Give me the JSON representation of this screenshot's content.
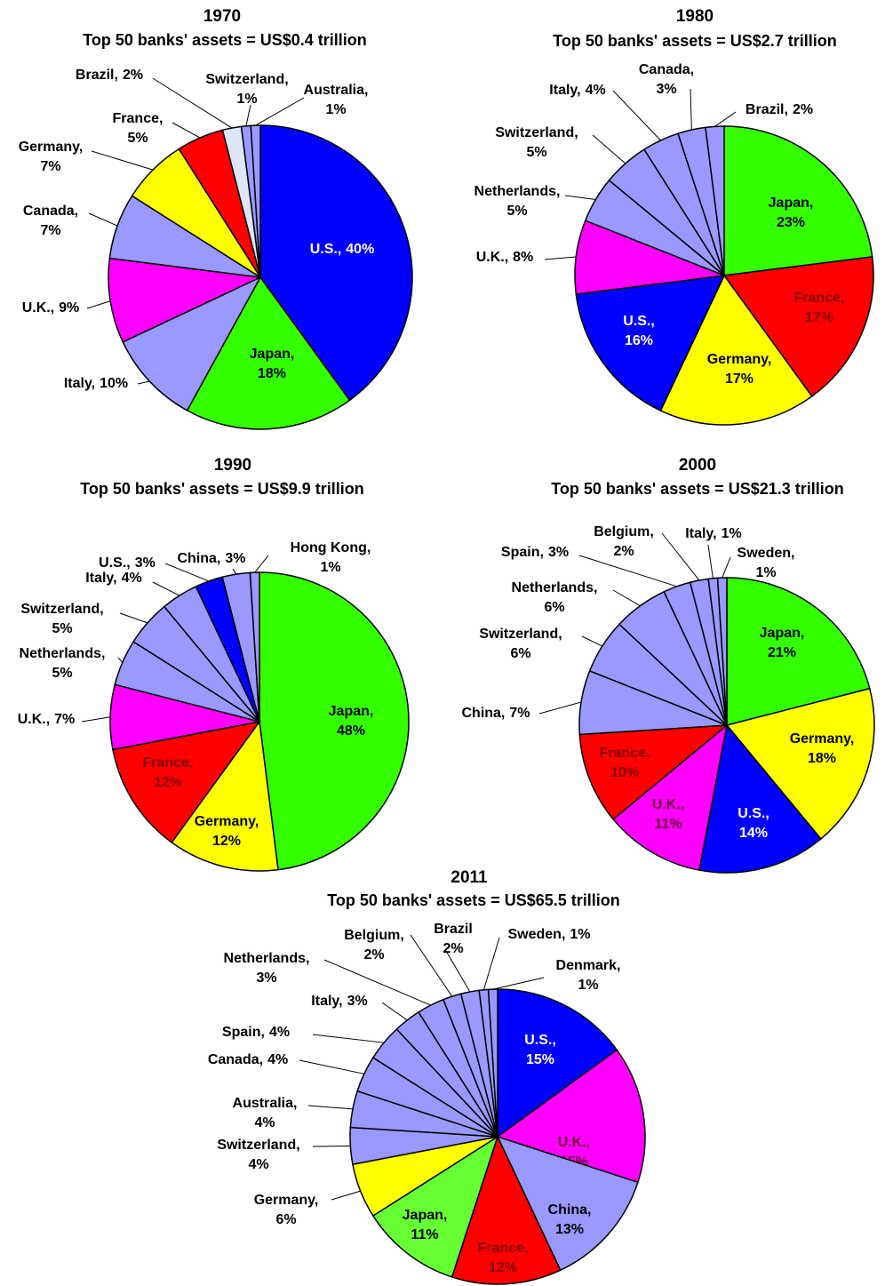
{
  "chart_data": [
    {
      "type": "pie",
      "title": "1970",
      "subtitle": "Top 50 banks' assets = US$0.4 trillion",
      "categories": [
        "U.S.,",
        "Japan,",
        "Italy,",
        "U.K.,",
        "Canada,",
        "Germany,",
        "France,",
        "Brazil,",
        "Switzerland,",
        "Australia,"
      ],
      "values": [
        40,
        18,
        10,
        9,
        7,
        7,
        5,
        2,
        1,
        1
      ],
      "value_labels": [
        "40%",
        "18%",
        "10%",
        "9%",
        "7%",
        "7%",
        "5%",
        "2%",
        "1%",
        "1%"
      ],
      "colors": [
        "#0000ff",
        "#33ff00",
        "#9999ff",
        "#ff00ff",
        "#9999ff",
        "#ffff00",
        "#ff0000",
        "#dde6f5",
        "#9999ff",
        "#9999ff"
      ]
    },
    {
      "type": "pie",
      "title": "1980",
      "subtitle": "Top 50 banks' assets = US$2.7 trillion",
      "categories": [
        "Japan,",
        "France,",
        "Germany,",
        "U.S.,",
        "U.K.,",
        "Netherlands,",
        "Switzerland,",
        "Italy,",
        "Canada,",
        "Brazil,"
      ],
      "values": [
        23,
        17,
        17,
        16,
        8,
        5,
        5,
        4,
        3,
        2
      ],
      "value_labels": [
        "23%",
        "17%",
        "17%",
        "16%",
        "8%",
        "5%",
        "5%",
        "4%",
        "3%",
        "2%"
      ],
      "colors": [
        "#33ff00",
        "#ff0000",
        "#ffff00",
        "#0000ff",
        "#ff00ff",
        "#9999ff",
        "#9999ff",
        "#9999ff",
        "#9999ff",
        "#9999ff"
      ]
    },
    {
      "type": "pie",
      "title": "1990",
      "subtitle": "Top 50 banks' assets = US$9.9 trillion",
      "categories": [
        "Japan,",
        "Germany,",
        "France,",
        "U.K.,",
        "Netherlands,",
        "Switzerland,",
        "Italy,",
        "U.S.,",
        "China,",
        "Hong Kong,"
      ],
      "values": [
        48,
        12,
        12,
        7,
        5,
        5,
        4,
        3,
        3,
        1
      ],
      "value_labels": [
        "48%",
        "12%",
        "12%",
        "7%",
        "5%",
        "5%",
        "4%",
        "3%",
        "3%",
        "1%"
      ],
      "colors": [
        "#33ff00",
        "#ffff00",
        "#ff0000",
        "#ff00ff",
        "#9999ff",
        "#9999ff",
        "#9999ff",
        "#0000ff",
        "#9999ff",
        "#9999ff"
      ]
    },
    {
      "type": "pie",
      "title": "2000",
      "subtitle": "Top 50 banks' assets = US$21.3 trillion",
      "categories": [
        "Japan,",
        "Germany,",
        "U.S.,",
        "U.K.,",
        "France,",
        "China,",
        "Switzerland,",
        "Netherlands,",
        "Spain,",
        "Belgium,",
        "Italy,",
        "Sweden,"
      ],
      "values": [
        21,
        18,
        14,
        11,
        10,
        7,
        6,
        6,
        3,
        2,
        1,
        1
      ],
      "value_labels": [
        "21%",
        "18%",
        "14%",
        "11%",
        "10%",
        "7%",
        "6%",
        "6%",
        "3%",
        "2%",
        "1%",
        "1%"
      ],
      "colors": [
        "#33ff00",
        "#ffff00",
        "#0000ff",
        "#ff00ff",
        "#ff0000",
        "#9999ff",
        "#9999ff",
        "#9999ff",
        "#9999ff",
        "#9999ff",
        "#9999ff",
        "#9999ff"
      ]
    },
    {
      "type": "pie",
      "title": "2011",
      "subtitle": "Top 50 banks' assets = US$65.5 trillion",
      "categories": [
        "U.S.,",
        "U.K.,",
        "China,",
        "France,",
        "Japan,",
        "Germany,",
        "Switzerland,",
        "Australia,",
        "Canada,",
        "Spain,",
        "Italy,",
        "Netherlands,",
        "Belgium,",
        "Brazil",
        "Sweden,",
        "Denmark,"
      ],
      "values": [
        15,
        15,
        13,
        12,
        11,
        6,
        4,
        4,
        4,
        4,
        3,
        3,
        2,
        2,
        1,
        1
      ],
      "value_labels": [
        "15%",
        "15%",
        "13%",
        "12%",
        "11%",
        "6%",
        "4%",
        "4%",
        "4%",
        "4%",
        "3%",
        "3%",
        "2%",
        "2%",
        "1%",
        "1%"
      ],
      "colors": [
        "#0000ff",
        "#ff00ff",
        "#9999ff",
        "#ff0000",
        "#66ff33",
        "#ffff00",
        "#9999ff",
        "#9999ff",
        "#9999ff",
        "#9999ff",
        "#9999ff",
        "#9999ff",
        "#9999ff",
        "#9999ff",
        "#9999ff",
        "#9999ff"
      ]
    }
  ]
}
